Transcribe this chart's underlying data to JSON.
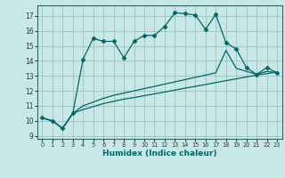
{
  "xlabel": "Humidex (Indice chaleur)",
  "bg_color": "#c8e8e8",
  "grid_color": "#9ababa",
  "line_color": "#006666",
  "xlim": [
    -0.5,
    23.5
  ],
  "ylim": [
    8.8,
    17.7
  ],
  "yticks": [
    9,
    10,
    11,
    12,
    13,
    14,
    15,
    16,
    17
  ],
  "xticks": [
    0,
    1,
    2,
    3,
    4,
    5,
    6,
    7,
    8,
    9,
    10,
    11,
    12,
    13,
    14,
    15,
    16,
    17,
    18,
    19,
    20,
    21,
    22,
    23
  ],
  "series1_x": [
    0,
    1,
    2,
    3,
    4,
    5,
    6,
    7,
    8,
    9,
    10,
    11,
    12,
    13,
    14,
    15,
    16,
    17,
    18,
    19,
    20,
    21,
    22,
    23
  ],
  "series1_y": [
    10.2,
    10.0,
    9.5,
    10.5,
    14.1,
    15.5,
    15.3,
    15.3,
    14.2,
    15.3,
    15.7,
    15.7,
    16.3,
    17.2,
    17.15,
    17.05,
    16.1,
    17.1,
    15.2,
    14.8,
    13.55,
    13.1,
    13.55,
    13.2
  ],
  "series2_x": [
    0,
    1,
    2,
    3,
    4,
    5,
    6,
    7,
    8,
    9,
    10,
    11,
    12,
    13,
    14,
    15,
    16,
    17,
    18,
    19,
    20,
    21,
    22,
    23
  ],
  "series2_y": [
    10.2,
    10.0,
    9.5,
    10.5,
    11.0,
    11.25,
    11.5,
    11.7,
    11.85,
    12.0,
    12.15,
    12.3,
    12.45,
    12.6,
    12.75,
    12.9,
    13.05,
    13.2,
    14.7,
    13.5,
    13.3,
    13.1,
    13.3,
    13.2
  ],
  "series3_x": [
    0,
    1,
    2,
    3,
    4,
    5,
    6,
    7,
    8,
    9,
    10,
    11,
    12,
    13,
    14,
    15,
    16,
    17,
    18,
    19,
    20,
    21,
    22,
    23
  ],
  "series3_y": [
    10.2,
    10.0,
    9.5,
    10.5,
    10.75,
    10.95,
    11.15,
    11.3,
    11.45,
    11.55,
    11.68,
    11.8,
    11.92,
    12.05,
    12.18,
    12.3,
    12.42,
    12.55,
    12.68,
    12.8,
    12.92,
    13.05,
    13.15,
    13.25
  ]
}
